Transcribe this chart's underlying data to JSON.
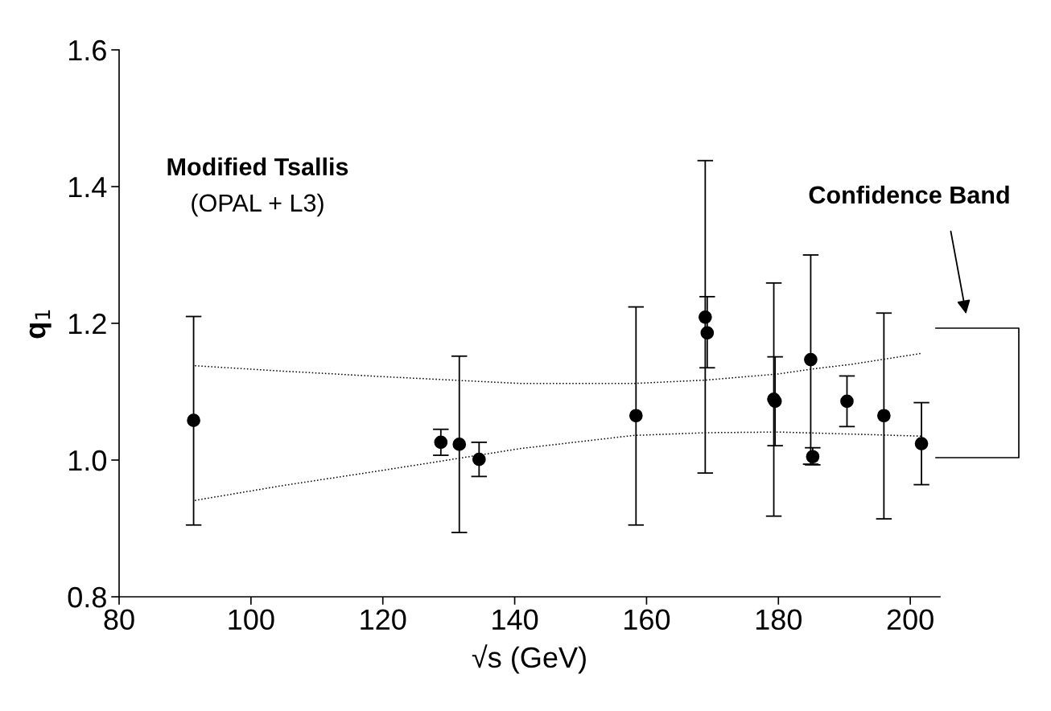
{
  "chart_data": {
    "type": "scatter",
    "xlabel": "√s (GeV)",
    "ylabel": "q$_{1}$",
    "xlim": [
      80,
      204.5
    ],
    "ylim": [
      0.8,
      1.6
    ],
    "xticks": [
      80,
      100,
      120,
      140,
      160,
      180,
      200
    ],
    "yticks": [
      {
        "value": 0.8,
        "label": "0.8"
      },
      {
        "value": 1.0,
        "label": "1.0"
      },
      {
        "value": 1.2,
        "label": "1.2"
      },
      {
        "value": 1.4,
        "label": "1.4"
      },
      {
        "value": 1.6,
        "label": "1.6"
      }
    ],
    "grid": false,
    "series": [
      {
        "color": "#000000",
        "marker": "circle",
        "x": [
          91.3,
          128.8,
          131.6,
          134.6,
          158.4,
          168.9,
          169.2,
          179.3,
          179.5,
          184.9,
          185.2,
          190.4,
          196.0,
          201.7
        ],
        "values": [
          1.058,
          1.026,
          1.023,
          1.001,
          1.065,
          1.209,
          1.186,
          1.089,
          1.086,
          1.147,
          1.005,
          1.086,
          1.065,
          1.024
        ],
        "errors": [
          [
            0.905,
            1.21
          ],
          [
            1.007,
            1.045
          ],
          [
            0.894,
            1.152
          ],
          [
            0.976,
            1.026
          ],
          [
            0.905,
            1.224
          ],
          [
            0.981,
            1.438
          ],
          [
            1.135,
            1.239
          ],
          [
            0.918,
            1.259
          ],
          [
            1.021,
            1.151
          ],
          [
            0.994,
            1.3
          ],
          [
            0.993,
            1.018
          ],
          [
            1.049,
            1.123
          ],
          [
            0.914,
            1.215
          ],
          [
            0.964,
            1.084
          ]
        ]
      },
      {
        "type": "line",
        "color": "#000000",
        "line_style": "dotted",
        "marker": "none",
        "x": [
          91.5,
          105,
          120,
          141,
          158,
          169,
          180,
          185,
          191,
          201.7
        ],
        "values": [
          1.138,
          1.13,
          1.122,
          1.112,
          1.112,
          1.117,
          1.126,
          1.133,
          1.14,
          1.156
        ]
      },
      {
        "type": "line",
        "color": "#000000",
        "line_style": "dotted",
        "marker": "none",
        "x": [
          91.5,
          105,
          120,
          141,
          158,
          169,
          180,
          191,
          201.7
        ],
        "values": [
          0.941,
          0.963,
          0.985,
          1.017,
          1.036,
          1.04,
          1.041,
          1.038,
          1.035
        ]
      }
    ],
    "annotations": [
      "Modified Tsallis",
      "(OPAL + L3)",
      "Confidence Band"
    ]
  }
}
